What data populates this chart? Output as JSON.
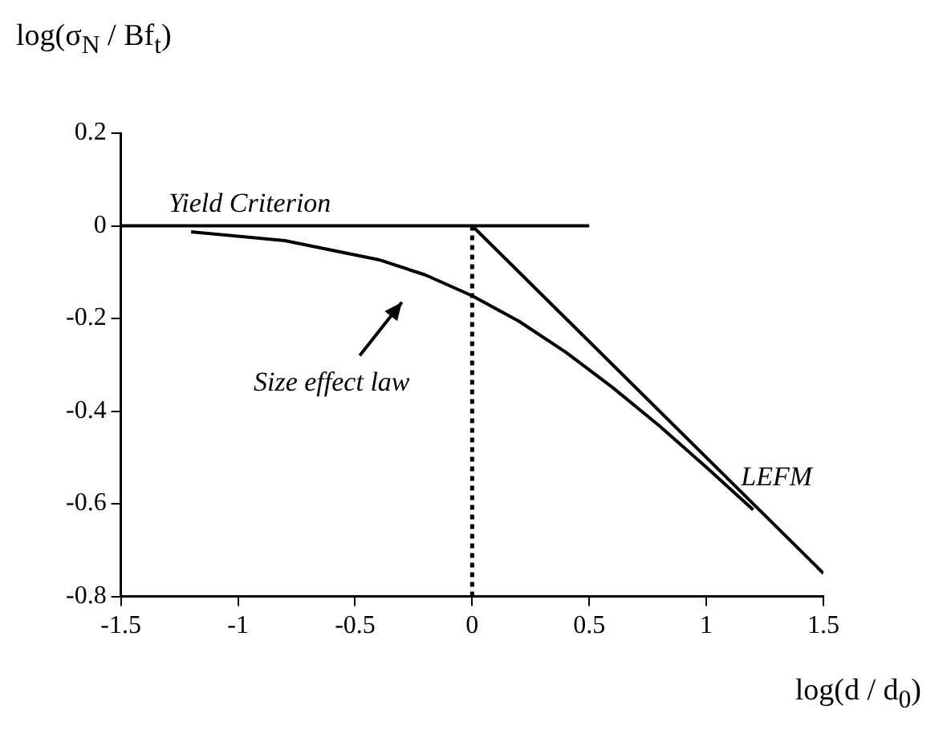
{
  "chart_data": {
    "type": "line",
    "xlabel": "log(d / d$_{0}$)",
    "ylabel": "log(σ$_{N}$ / Bf$_{t}$)",
    "xlim": [
      -1.5,
      1.5
    ],
    "xticks": [
      -1.5,
      -1,
      -0.5,
      0,
      0.5,
      1,
      1.5
    ],
    "ylim": [
      -0.8,
      0.2
    ],
    "yticks": [
      -0.8,
      -0.6,
      -0.4,
      -0.2,
      0,
      0.2
    ],
    "grid": false,
    "marker": "none",
    "series": [
      {
        "name": "Yield Criterion",
        "color": "#000000",
        "x": [
          -1.5,
          0.5
        ],
        "values": [
          0,
          0
        ]
      },
      {
        "name": "LEFM",
        "color": "#000000",
        "x": [
          0,
          1.5
        ],
        "values": [
          0,
          -0.75
        ]
      },
      {
        "name": "Size effect law",
        "color": "#000000",
        "x": [
          -1.2,
          -0.8,
          -0.4,
          -0.2,
          0,
          0.2,
          0.4,
          0.6,
          0.8,
          1.0,
          1.2
        ],
        "values": [
          -0.013,
          -0.032,
          -0.073,
          -0.106,
          -0.151,
          -0.206,
          -0.273,
          -0.349,
          -0.432,
          -0.521,
          -0.613
        ]
      },
      {
        "color": "#000000",
        "x": [
          0,
          0
        ],
        "values": [
          0,
          -0.8
        ],
        "line_style": "dotted"
      }
    ]
  }
}
